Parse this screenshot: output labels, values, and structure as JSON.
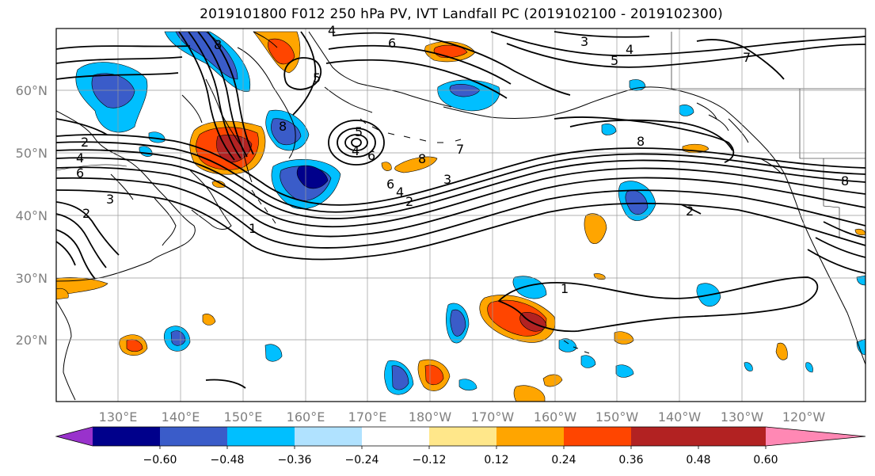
{
  "title": "2019101800 F012 250 hPa PV, IVT Landfall PC (2019102100 - 2019102300)",
  "lat_labels": [
    "60°N",
    "50°N",
    "40°N",
    "30°N",
    "20°N"
  ],
  "lon_labels": [
    "130°E",
    "140°E",
    "150°E",
    "160°E",
    "170°E",
    "180°W",
    "170°W",
    "160°W",
    "150°W",
    "140°W",
    "130°W",
    "120°W"
  ],
  "colorbar": {
    "colors": [
      "#9932cc",
      "#00008b",
      "#3a5cc9",
      "#00bfff",
      "#b0e2ff",
      "#ffffff",
      "#ffe78a",
      "#ffa500",
      "#ff4500",
      "#b22222",
      "#ff88b4"
    ],
    "tick_labels": [
      "−0.60",
      "−0.48",
      "−0.36",
      "−0.24",
      "−0.12",
      "0.12",
      "0.24",
      "0.36",
      "0.48",
      "0.60"
    ]
  },
  "contour_labels": [
    "3",
    "5",
    "4",
    "7",
    "6",
    "5",
    "4",
    "8",
    "5",
    "4",
    "6",
    "2",
    "4",
    "6",
    "2",
    "3",
    "1",
    "8",
    "8",
    "7",
    "3",
    "2",
    "6",
    "4",
    "8",
    "2",
    "1",
    "8"
  ]
}
